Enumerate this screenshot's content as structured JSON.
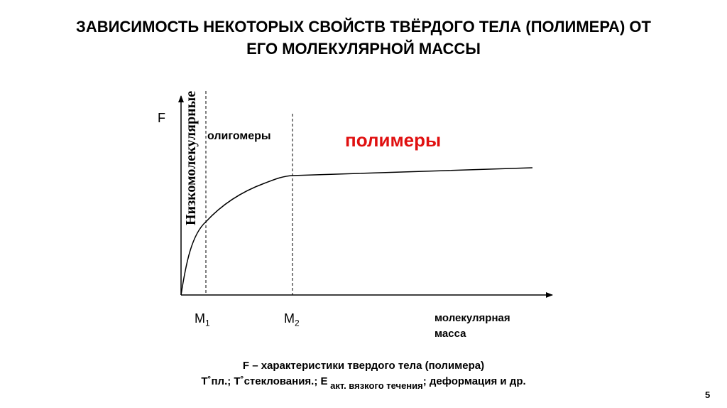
{
  "slide": {
    "title_line1": "ЗАВИСИМОСТЬ НЕКОТОРЫХ СВОЙСТВ ТВЁРДОГО ТЕЛА (ПОЛИМЕРА) ОТ",
    "title_line2": "ЕГО МОЛЕКУЛЯРНОЙ МАССЫ",
    "page_number": "5"
  },
  "diagram": {
    "y_axis_label": "F",
    "region_low": "Низкомолекулярные",
    "region_oligomers": "олигомеры",
    "region_polymers": "полимеры",
    "polymers_color": "#e01010",
    "m1_label": "M",
    "m1_sub": "1",
    "m2_label": "M",
    "m2_sub": "2",
    "x_axis_label_line1": "молекулярная",
    "x_axis_label_line2": "масса"
  },
  "caption": {
    "line1": "F – характеристики твердого тела (полимера)",
    "line2_part1": "T˚пл.; T˚стеклования.; E",
    "line2_sub": " акт. вязкого течения",
    "line2_part2": "; деформация и др."
  }
}
